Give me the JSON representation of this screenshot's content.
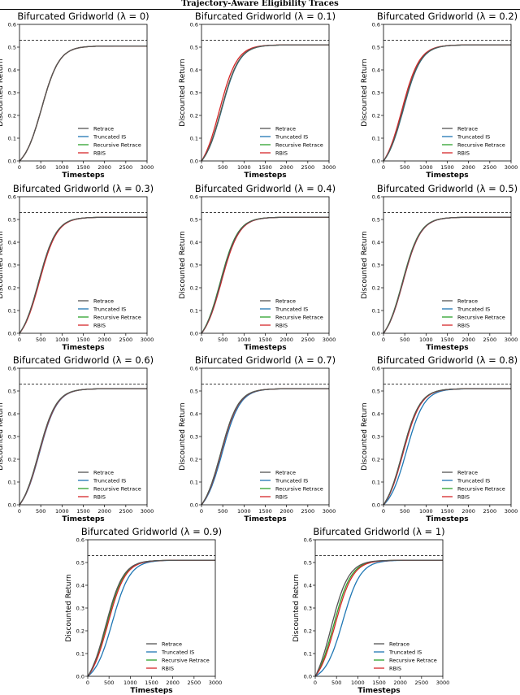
{
  "page": {
    "header": "Trajectory-Aware Eligibility Traces"
  },
  "colors": {
    "Retrace": "#555555",
    "Truncated IS": "#1f77b4",
    "Recursive Retrace": "#2ca02c",
    "RBIS": "#d62728",
    "reference_line": "#000000"
  },
  "chart_data": [
    {
      "type": "line",
      "title": "Bifurcated Gridworld (λ = 0)",
      "xlabel": "Timesteps",
      "ylabel": "Discounted Return",
      "xlim": [
        0,
        3000
      ],
      "ylim": [
        0,
        0.6
      ],
      "xticks": [
        0,
        500,
        1000,
        1500,
        2000,
        2500,
        3000
      ],
      "yticks": [
        0,
        0.1,
        0.2,
        0.3,
        0.4,
        0.5,
        0.6
      ],
      "reference_line_y": 0.53,
      "legend": [
        "Retrace",
        "Truncated IS",
        "Recursive Retrace",
        "RBIS"
      ],
      "legend_position": "lower-right",
      "series": [
        {
          "name": "Retrace",
          "mid_x": 520,
          "final_y": 0.505
        },
        {
          "name": "Truncated IS",
          "mid_x": 520,
          "final_y": 0.505
        },
        {
          "name": "Recursive Retrace",
          "mid_x": 520,
          "final_y": 0.505
        },
        {
          "name": "RBIS",
          "mid_x": 520,
          "final_y": 0.505
        }
      ]
    },
    {
      "type": "line",
      "title": "Bifurcated Gridworld (λ = 0.1)",
      "xlabel": "Timesteps",
      "ylabel": "Discounted Return",
      "xlim": [
        0,
        3000
      ],
      "ylim": [
        0,
        0.6
      ],
      "xticks": [
        0,
        500,
        1000,
        1500,
        2000,
        2500,
        3000
      ],
      "yticks": [
        0,
        0.1,
        0.2,
        0.3,
        0.4,
        0.5,
        0.6
      ],
      "reference_line_y": 0.53,
      "legend": [
        "Retrace",
        "Truncated IS",
        "Recursive Retrace",
        "RBIS"
      ],
      "legend_position": "lower-right",
      "series": [
        {
          "name": "Retrace",
          "mid_x": 470,
          "final_y": 0.51
        },
        {
          "name": "Truncated IS",
          "mid_x": 480,
          "final_y": 0.51
        },
        {
          "name": "Recursive Retrace",
          "mid_x": 470,
          "final_y": 0.51
        },
        {
          "name": "RBIS",
          "mid_x": 420,
          "final_y": 0.51
        }
      ]
    },
    {
      "type": "line",
      "title": "Bifurcated Gridworld (λ = 0.2)",
      "xlabel": "Timesteps",
      "ylabel": "Discounted Return",
      "xlim": [
        0,
        3000
      ],
      "ylim": [
        0,
        0.6
      ],
      "xticks": [
        0,
        500,
        1000,
        1500,
        2000,
        2500,
        3000
      ],
      "yticks": [
        0,
        0.1,
        0.2,
        0.3,
        0.4,
        0.5,
        0.6
      ],
      "reference_line_y": 0.53,
      "legend": [
        "Retrace",
        "Truncated IS",
        "Recursive Retrace",
        "RBIS"
      ],
      "legend_position": "lower-right",
      "series": [
        {
          "name": "Retrace",
          "mid_x": 460,
          "final_y": 0.51
        },
        {
          "name": "Truncated IS",
          "mid_x": 470,
          "final_y": 0.51
        },
        {
          "name": "Recursive Retrace",
          "mid_x": 460,
          "final_y": 0.51
        },
        {
          "name": "RBIS",
          "mid_x": 430,
          "final_y": 0.51
        }
      ]
    },
    {
      "type": "line",
      "title": "Bifurcated Gridworld (λ = 0.3)",
      "xlabel": "Timesteps",
      "ylabel": "Discounted Return",
      "xlim": [
        0,
        3000
      ],
      "ylim": [
        0,
        0.6
      ],
      "xticks": [
        0,
        500,
        1000,
        1500,
        2000,
        2500,
        3000
      ],
      "yticks": [
        0,
        0.1,
        0.2,
        0.3,
        0.4,
        0.5,
        0.6
      ],
      "reference_line_y": 0.53,
      "legend": [
        "Retrace",
        "Truncated IS",
        "Recursive Retrace",
        "RBIS"
      ],
      "legend_position": "lower-right",
      "series": [
        {
          "name": "Retrace",
          "mid_x": 450,
          "final_y": 0.51
        },
        {
          "name": "Truncated IS",
          "mid_x": 460,
          "final_y": 0.51
        },
        {
          "name": "Recursive Retrace",
          "mid_x": 450,
          "final_y": 0.51
        },
        {
          "name": "RBIS",
          "mid_x": 470,
          "final_y": 0.51
        }
      ]
    },
    {
      "type": "line",
      "title": "Bifurcated Gridworld (λ = 0.4)",
      "xlabel": "Timesteps",
      "ylabel": "Discounted Return",
      "xlim": [
        0,
        3000
      ],
      "ylim": [
        0,
        0.6
      ],
      "xticks": [
        0,
        500,
        1000,
        1500,
        2000,
        2500,
        3000
      ],
      "yticks": [
        0,
        0.1,
        0.2,
        0.3,
        0.4,
        0.5,
        0.6
      ],
      "reference_line_y": 0.53,
      "legend": [
        "Retrace",
        "Truncated IS",
        "Recursive Retrace",
        "RBIS"
      ],
      "legend_position": "lower-right",
      "series": [
        {
          "name": "Retrace",
          "mid_x": 450,
          "final_y": 0.51
        },
        {
          "name": "Truncated IS",
          "mid_x": 460,
          "final_y": 0.51
        },
        {
          "name": "Recursive Retrace",
          "mid_x": 440,
          "final_y": 0.51
        },
        {
          "name": "RBIS",
          "mid_x": 470,
          "final_y": 0.51
        }
      ]
    },
    {
      "type": "line",
      "title": "Bifurcated Gridworld (λ = 0.5)",
      "xlabel": "Timesteps",
      "ylabel": "Discounted Return",
      "xlim": [
        0,
        3000
      ],
      "ylim": [
        0,
        0.6
      ],
      "xticks": [
        0,
        500,
        1000,
        1500,
        2000,
        2500,
        3000
      ],
      "yticks": [
        0,
        0.1,
        0.2,
        0.3,
        0.4,
        0.5,
        0.6
      ],
      "reference_line_y": 0.53,
      "legend": [
        "Retrace",
        "Truncated IS",
        "Recursive Retrace",
        "RBIS"
      ],
      "legend_position": "lower-right",
      "series": [
        {
          "name": "Retrace",
          "mid_x": 450,
          "final_y": 0.51
        },
        {
          "name": "Truncated IS",
          "mid_x": 460,
          "final_y": 0.51
        },
        {
          "name": "Recursive Retrace",
          "mid_x": 445,
          "final_y": 0.51
        },
        {
          "name": "RBIS",
          "mid_x": 460,
          "final_y": 0.51
        }
      ]
    },
    {
      "type": "line",
      "title": "Bifurcated Gridworld (λ = 0.6)",
      "xlabel": "Timesteps",
      "ylabel": "Discounted Return",
      "xlim": [
        0,
        3000
      ],
      "ylim": [
        0,
        0.6
      ],
      "xticks": [
        0,
        500,
        1000,
        1500,
        2000,
        2500,
        3000
      ],
      "yticks": [
        0,
        0.1,
        0.2,
        0.3,
        0.4,
        0.5,
        0.6
      ],
      "reference_line_y": 0.53,
      "legend": [
        "Retrace",
        "Truncated IS",
        "Recursive Retrace",
        "RBIS"
      ],
      "legend_position": "lower-right",
      "series": [
        {
          "name": "Retrace",
          "mid_x": 450,
          "final_y": 0.51
        },
        {
          "name": "Truncated IS",
          "mid_x": 470,
          "final_y": 0.51
        },
        {
          "name": "Recursive Retrace",
          "mid_x": 450,
          "final_y": 0.51
        },
        {
          "name": "RBIS",
          "mid_x": 460,
          "final_y": 0.51
        }
      ]
    },
    {
      "type": "line",
      "title": "Bifurcated Gridworld (λ = 0.7)",
      "xlabel": "Timesteps",
      "ylabel": "Discounted Return",
      "xlim": [
        0,
        3000
      ],
      "ylim": [
        0,
        0.6
      ],
      "xticks": [
        0,
        500,
        1000,
        1500,
        2000,
        2500,
        3000
      ],
      "yticks": [
        0,
        0.1,
        0.2,
        0.3,
        0.4,
        0.5,
        0.6
      ],
      "reference_line_y": 0.53,
      "legend": [
        "Retrace",
        "Truncated IS",
        "Recursive Retrace",
        "RBIS"
      ],
      "legend_position": "lower-right",
      "series": [
        {
          "name": "Retrace",
          "mid_x": 450,
          "final_y": 0.51
        },
        {
          "name": "Truncated IS",
          "mid_x": 490,
          "final_y": 0.51
        },
        {
          "name": "Recursive Retrace",
          "mid_x": 450,
          "final_y": 0.51
        },
        {
          "name": "RBIS",
          "mid_x": 460,
          "final_y": 0.51
        }
      ]
    },
    {
      "type": "line",
      "title": "Bifurcated Gridworld (λ = 0.8)",
      "xlabel": "Timesteps",
      "ylabel": "Discounted Return",
      "xlim": [
        0,
        3000
      ],
      "ylim": [
        0,
        0.6
      ],
      "xticks": [
        0,
        500,
        1000,
        1500,
        2000,
        2500,
        3000
      ],
      "yticks": [
        0,
        0.1,
        0.2,
        0.3,
        0.4,
        0.5,
        0.6
      ],
      "reference_line_y": 0.53,
      "legend": [
        "Retrace",
        "Truncated IS",
        "Recursive Retrace",
        "RBIS"
      ],
      "legend_position": "lower-right",
      "series": [
        {
          "name": "Retrace",
          "mid_x": 440,
          "final_y": 0.51
        },
        {
          "name": "Truncated IS",
          "mid_x": 540,
          "final_y": 0.51
        },
        {
          "name": "Recursive Retrace",
          "mid_x": 440,
          "final_y": 0.51
        },
        {
          "name": "RBIS",
          "mid_x": 460,
          "final_y": 0.51
        }
      ]
    },
    {
      "type": "line",
      "title": "Bifurcated Gridworld (λ = 0.9)",
      "xlabel": "Timesteps",
      "ylabel": "Discounted Return",
      "xlim": [
        0,
        3000
      ],
      "ylim": [
        0,
        0.6
      ],
      "xticks": [
        0,
        500,
        1000,
        1500,
        2000,
        2500,
        3000
      ],
      "yticks": [
        0,
        0.1,
        0.2,
        0.3,
        0.4,
        0.5,
        0.6
      ],
      "reference_line_y": 0.53,
      "legend": [
        "Retrace",
        "Truncated IS",
        "Recursive Retrace",
        "RBIS"
      ],
      "legend_position": "lower-right",
      "series": [
        {
          "name": "Retrace",
          "mid_x": 420,
          "final_y": 0.51
        },
        {
          "name": "Truncated IS",
          "mid_x": 580,
          "final_y": 0.51
        },
        {
          "name": "Recursive Retrace",
          "mid_x": 440,
          "final_y": 0.51
        },
        {
          "name": "RBIS",
          "mid_x": 470,
          "final_y": 0.51
        }
      ]
    },
    {
      "type": "line",
      "title": "Bifurcated Gridworld (λ = 1)",
      "xlabel": "Timesteps",
      "ylabel": "Discounted Return",
      "xlim": [
        0,
        3000
      ],
      "ylim": [
        0,
        0.6
      ],
      "xticks": [
        0,
        500,
        1000,
        1500,
        2000,
        2500,
        3000
      ],
      "yticks": [
        0,
        0.1,
        0.2,
        0.3,
        0.4,
        0.5,
        0.6
      ],
      "reference_line_y": 0.53,
      "legend": [
        "Retrace",
        "Truncated IS",
        "Recursive Retrace",
        "RBIS"
      ],
      "legend_position": "lower-right",
      "series": [
        {
          "name": "Retrace",
          "mid_x": 370,
          "final_y": 0.51
        },
        {
          "name": "Truncated IS",
          "mid_x": 650,
          "final_y": 0.51
        },
        {
          "name": "Recursive Retrace",
          "mid_x": 430,
          "final_y": 0.51
        },
        {
          "name": "RBIS",
          "mid_x": 470,
          "final_y": 0.51
        }
      ]
    }
  ]
}
